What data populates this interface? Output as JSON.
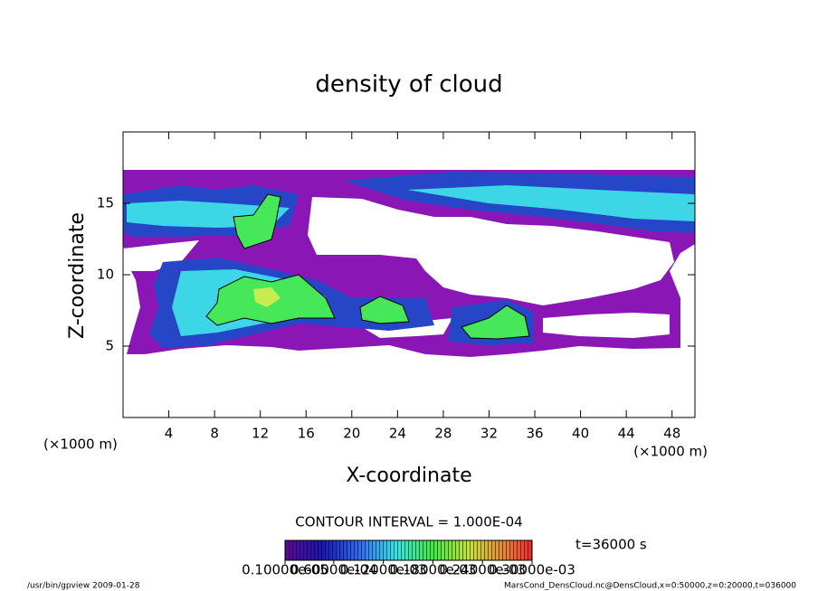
{
  "chart_data": {
    "type": "contour",
    "title": "density of cloud",
    "x_label": "X-coordinate",
    "y_label": "Z-coordinate",
    "x_unit": "(×1000 m)",
    "y_unit": "(×1000 m)",
    "xlim": [
      0,
      50
    ],
    "ylim": [
      0,
      20
    ],
    "xticks": [
      4,
      8,
      12,
      16,
      20,
      24,
      28,
      32,
      36,
      40,
      44,
      48
    ],
    "yticks": [
      5,
      10,
      15
    ],
    "contour_note": "CONTOUR INTERVAL = 1.000E-04",
    "time_label": "t=36000 s",
    "colorbar": {
      "lim": [
        1e-06,
        0.0003
      ],
      "ticks": [
        {
          "value": 1e-06,
          "label": "0.10000e-05"
        },
        {
          "value": 6e-05,
          "label": "0.60000e-04"
        },
        {
          "value": 0.00012,
          "label": "0.12000e-03"
        },
        {
          "value": 0.00018,
          "label": "0.18000e-03"
        },
        {
          "value": 0.00024,
          "label": "0.24000e-03"
        },
        {
          "value": 0.0003,
          "label": "0.30000e-03"
        }
      ]
    },
    "footer_left": "/usr/bin/gpview  2009-01-28",
    "footer_right": "MarsCond_DensCloud.nc@DensCloud,x=0:50000,z=0:20000,t=036000"
  }
}
